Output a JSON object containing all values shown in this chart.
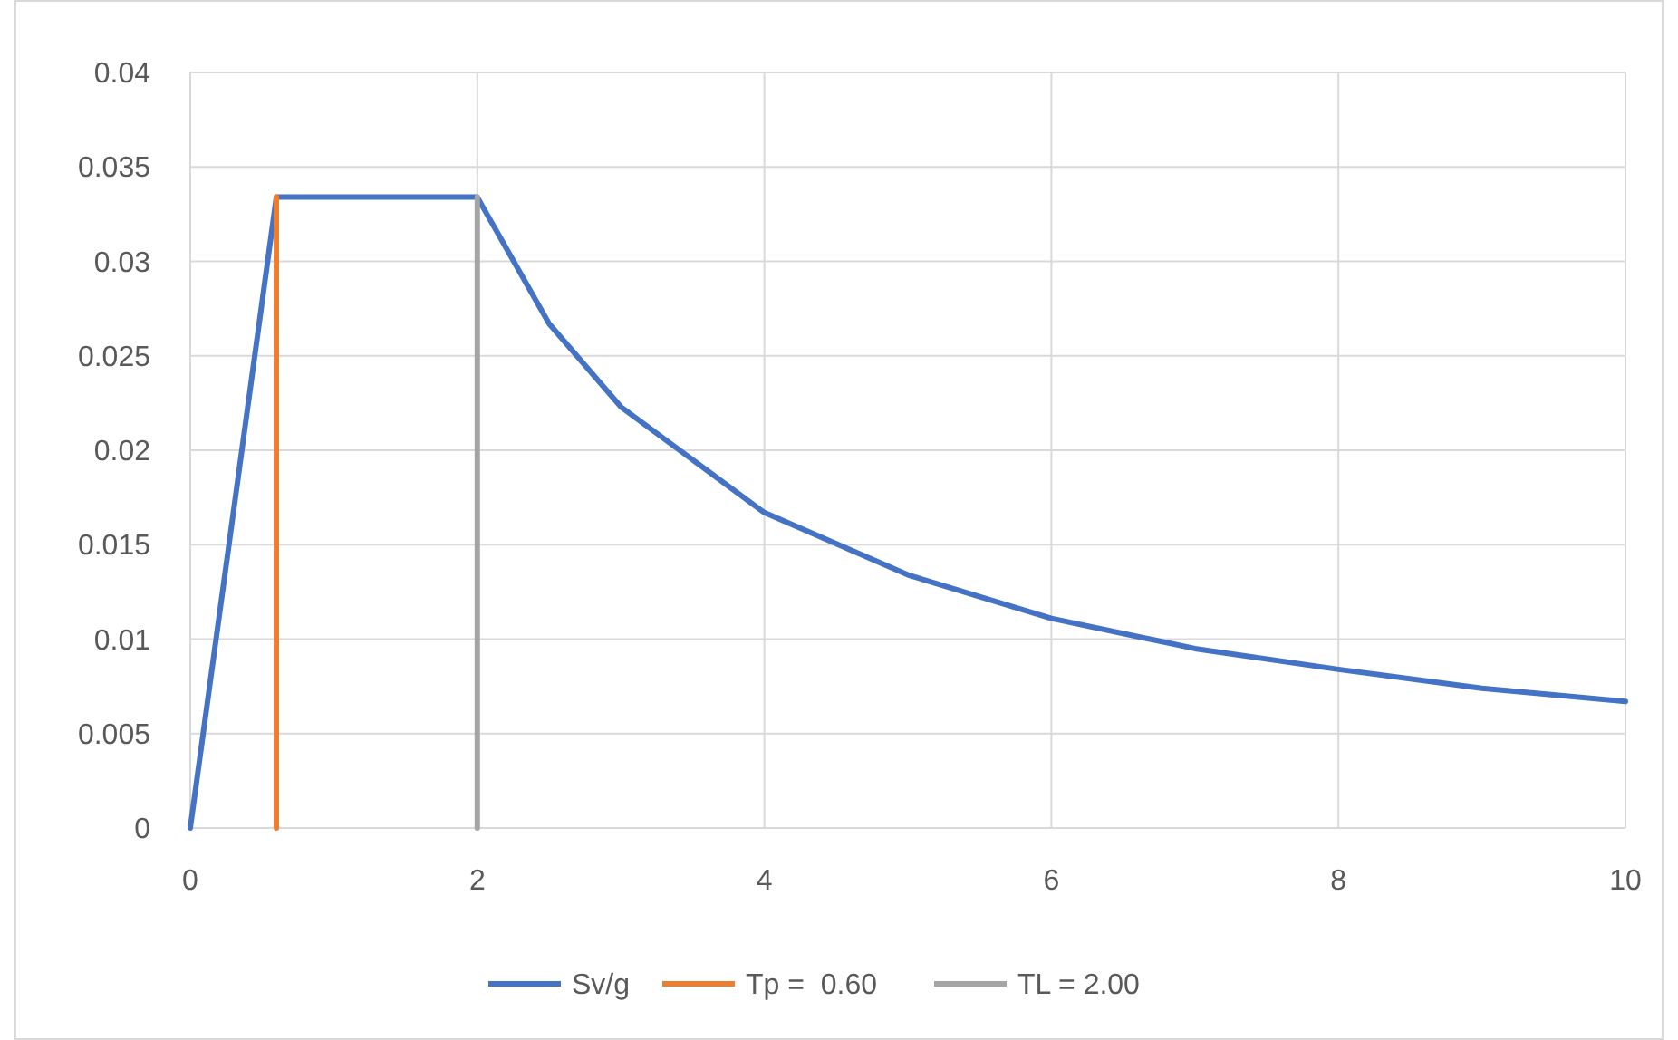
{
  "chart_data": {
    "type": "line",
    "xlim": [
      0,
      10
    ],
    "xticks": [
      0,
      2,
      4,
      6,
      8,
      10
    ],
    "ylim": [
      0,
      0.04
    ],
    "yticks": [
      0,
      0.005,
      0.01,
      0.015,
      0.02,
      0.025,
      0.03,
      0.035,
      0.04
    ],
    "grid": true,
    "legend": "bottom",
    "marker": "none",
    "line_style": "solid",
    "series": [
      {
        "name": "Sv/g",
        "color": "#4472c4",
        "x": [
          0,
          0.6,
          2,
          2.5,
          3,
          4,
          5,
          6,
          7,
          8,
          9,
          10
        ],
        "values": [
          0,
          0.0334,
          0.0334,
          0.0267,
          0.0223,
          0.0167,
          0.0134,
          0.0111,
          0.0095,
          0.0084,
          0.0074,
          0.0067
        ]
      },
      {
        "name": "Tp =  0.60",
        "color": "#ed7d31",
        "x": [
          0.6,
          0.6
        ],
        "values": [
          0,
          0.0334
        ]
      },
      {
        "name": "TL = 2.00",
        "color": "#a5a5a5",
        "x": [
          2,
          2
        ],
        "values": [
          0,
          0.0334
        ]
      }
    ]
  }
}
